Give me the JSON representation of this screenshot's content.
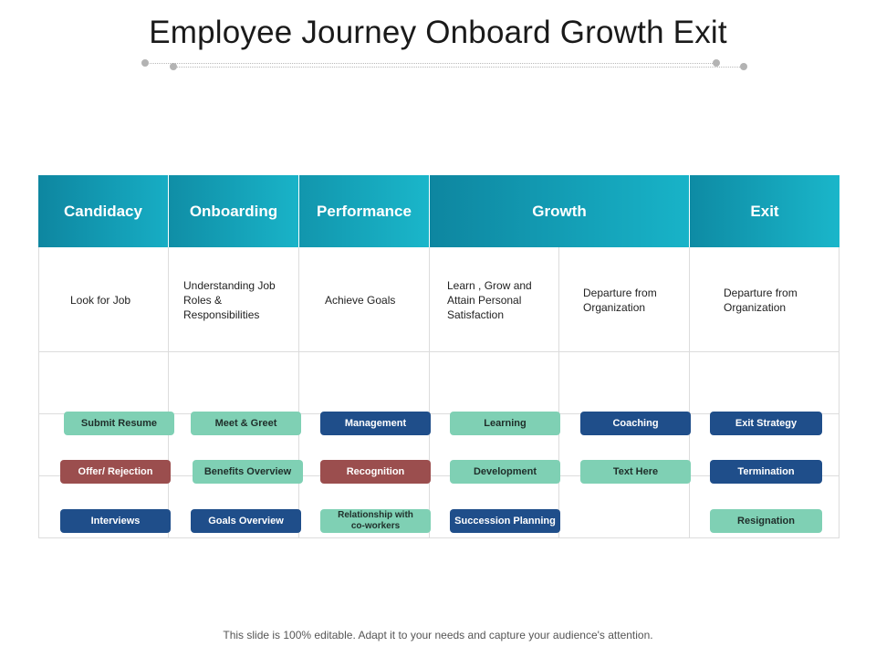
{
  "title": "Employee Journey Onboard Growth Exit",
  "colors": {
    "header_start": "#0e8aa0",
    "header_end": "#18b4c8",
    "green": "#7fd0b4",
    "navy": "#1f4e8a",
    "red": "#9b4e4e"
  },
  "headers": [
    "Candidacy",
    "Onboarding",
    "Performance",
    "Growth",
    "Exit"
  ],
  "descriptions": [
    "Look for Job",
    "Understanding Job Roles & Responsibilities",
    "Achieve Goals",
    "Learn , Grow and Attain Personal Satisfaction",
    "Departure from Organization",
    "Departure from Organization"
  ],
  "pills": {
    "c1": [
      {
        "label": "Submit Resume",
        "color": "green"
      },
      {
        "label": "Offer/ Rejection",
        "color": "red"
      },
      {
        "label": "Interviews",
        "color": "navy"
      }
    ],
    "c2": [
      {
        "label": "Meet & Greet",
        "color": "green"
      },
      {
        "label": "Benefits Overview",
        "color": "green"
      },
      {
        "label": "Goals Overview",
        "color": "navy"
      }
    ],
    "c3": [
      {
        "label": "Management",
        "color": "navy"
      },
      {
        "label": "Recognition",
        "color": "red"
      },
      {
        "label": "Relationship with co-workers",
        "color": "green"
      }
    ],
    "c4": [
      {
        "label": "Learning",
        "color": "green"
      },
      {
        "label": "Development",
        "color": "green"
      },
      {
        "label": "Succession Planning",
        "color": "navy"
      }
    ],
    "c5": [
      {
        "label": "Coaching",
        "color": "navy"
      },
      {
        "label": "Text Here",
        "color": "green"
      }
    ],
    "c6": [
      {
        "label": "Exit Strategy",
        "color": "navy"
      },
      {
        "label": "Termination",
        "color": "navy"
      },
      {
        "label": "Resignation",
        "color": "green"
      }
    ]
  },
  "footer": "This slide is 100% editable. Adapt it to your needs and capture your audience's attention."
}
